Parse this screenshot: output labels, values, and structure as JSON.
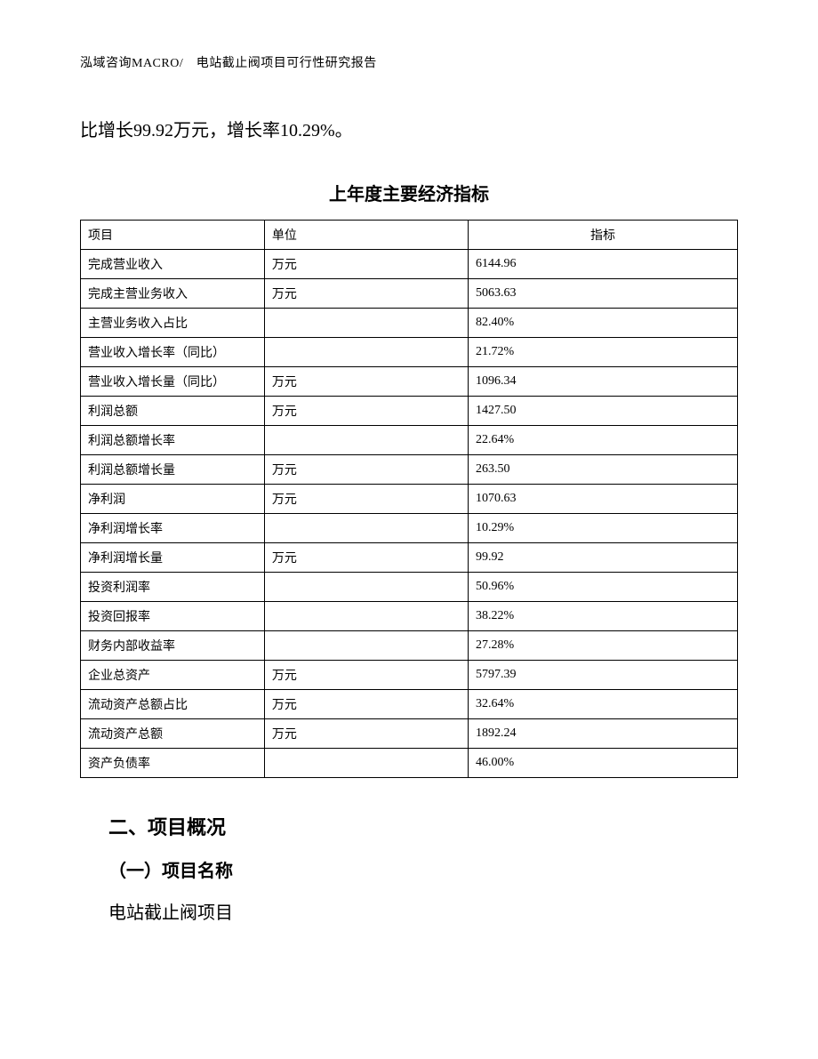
{
  "header": {
    "text": "泓域咨询MACRO/　电站截止阀项目可行性研究报告"
  },
  "intro": {
    "text": "比增长99.92万元，增长率10.29%。"
  },
  "table": {
    "title": "上年度主要经济指标",
    "columns": {
      "item": "项目",
      "unit": "单位",
      "value": "指标"
    },
    "rows": [
      {
        "item": "完成营业收入",
        "unit": "万元",
        "value": "6144.96"
      },
      {
        "item": "完成主营业务收入",
        "unit": "万元",
        "value": "5063.63"
      },
      {
        "item": "主营业务收入占比",
        "unit": "",
        "value": "82.40%"
      },
      {
        "item": "营业收入增长率（同比）",
        "unit": "",
        "value": "21.72%"
      },
      {
        "item": "营业收入增长量（同比）",
        "unit": "万元",
        "value": "1096.34"
      },
      {
        "item": "利润总额",
        "unit": "万元",
        "value": "1427.50"
      },
      {
        "item": "利润总额增长率",
        "unit": "",
        "value": "22.64%"
      },
      {
        "item": "利润总额增长量",
        "unit": "万元",
        "value": "263.50"
      },
      {
        "item": "净利润",
        "unit": "万元",
        "value": "1070.63"
      },
      {
        "item": "净利润增长率",
        "unit": "",
        "value": "10.29%"
      },
      {
        "item": "净利润增长量",
        "unit": "万元",
        "value": "99.92"
      },
      {
        "item": "投资利润率",
        "unit": "",
        "value": "50.96%"
      },
      {
        "item": "投资回报率",
        "unit": "",
        "value": "38.22%"
      },
      {
        "item": "财务内部收益率",
        "unit": "",
        "value": "27.28%"
      },
      {
        "item": "企业总资产",
        "unit": "万元",
        "value": "5797.39"
      },
      {
        "item": "流动资产总额占比",
        "unit": "万元",
        "value": "32.64%"
      },
      {
        "item": "流动资产总额",
        "unit": "万元",
        "value": "1892.24"
      },
      {
        "item": "资产负债率",
        "unit": "",
        "value": "46.00%"
      }
    ]
  },
  "section": {
    "heading": "二、项目概况",
    "sub_heading": "（一）项目名称",
    "body": "电站截止阀项目"
  }
}
